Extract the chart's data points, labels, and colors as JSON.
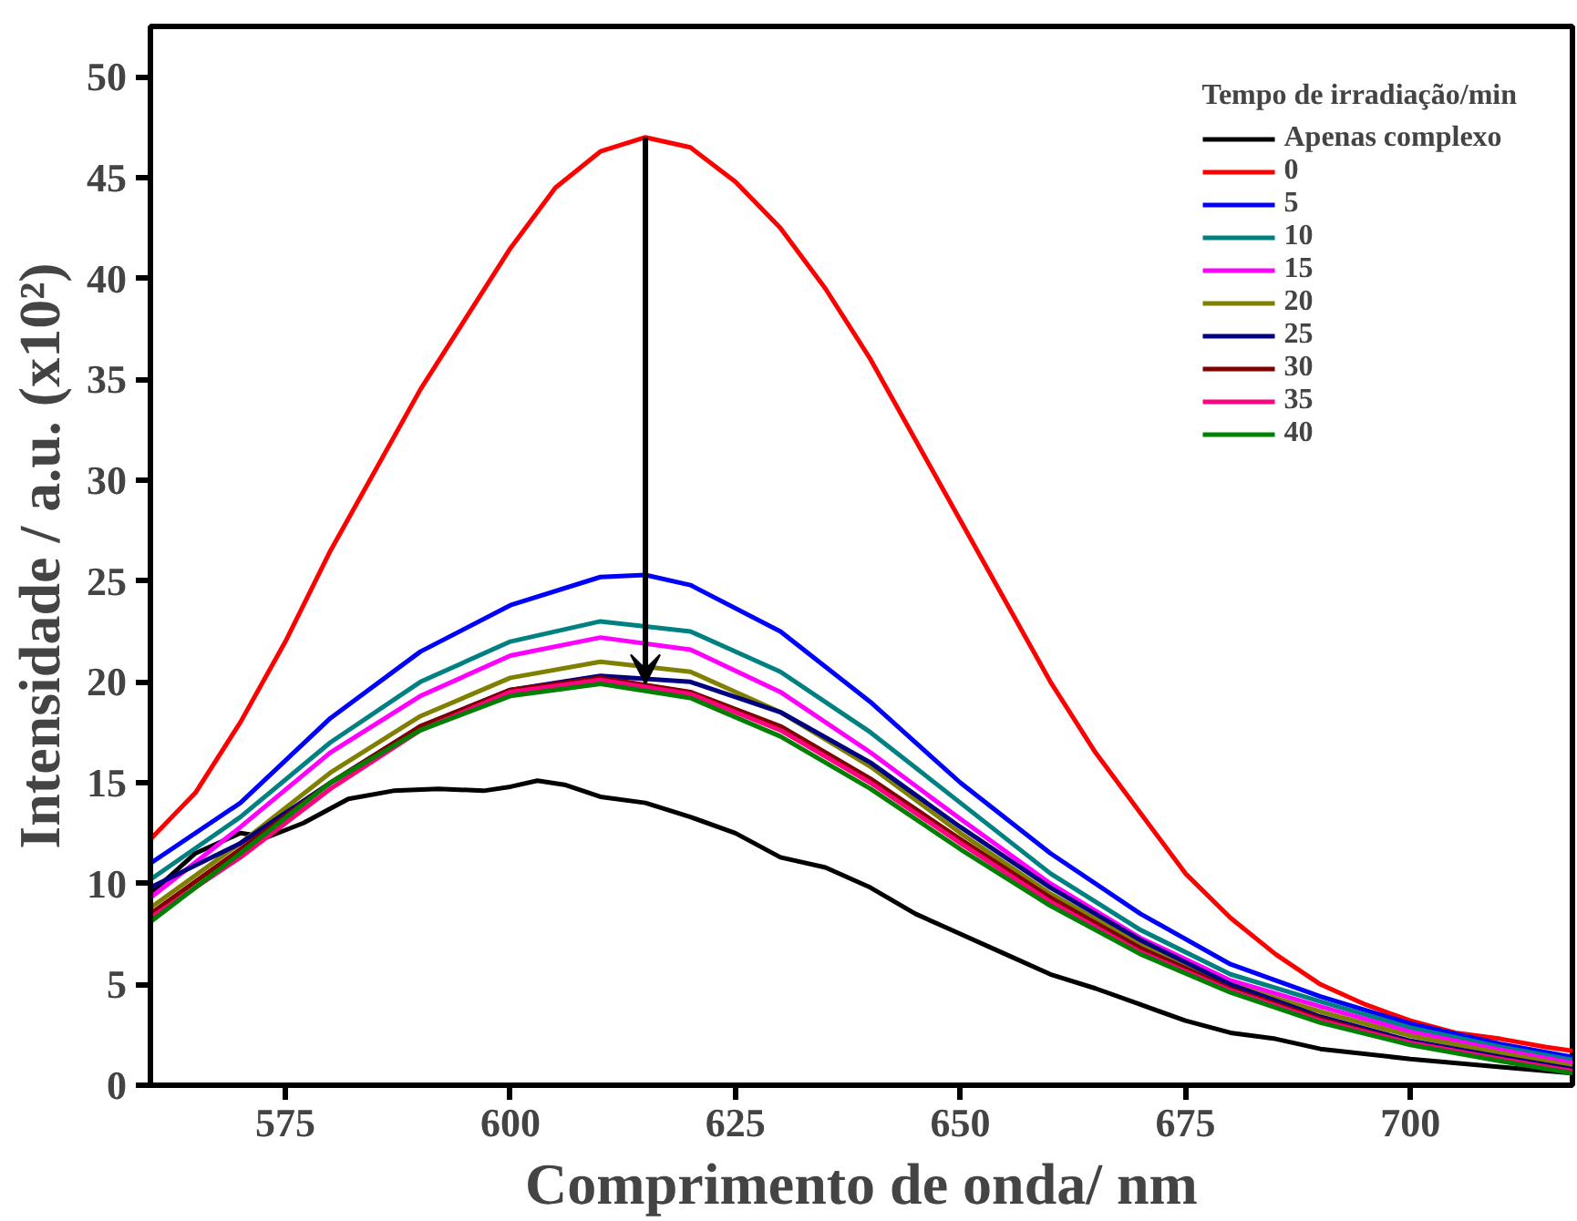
{
  "chart_data": {
    "type": "line",
    "xlabel": "Comprimento de onda/ nm",
    "ylabel": "Intensidade / a.u. (x10²)",
    "legend_title": "Tempo de irradiação/min",
    "legend": "top right",
    "grid": false,
    "marker": "none",
    "line_style": "solid",
    "xlim": [
      560,
      718
    ],
    "xticks": [
      575,
      600,
      625,
      650,
      675,
      700
    ],
    "ylim": [
      0,
      52.5
    ],
    "yticks": [
      0,
      5,
      10,
      15,
      20,
      25,
      30,
      35,
      40,
      45,
      50
    ],
    "series": [
      {
        "name": "Apenas complexo",
        "color": "#000000",
        "x": [
          560,
          565,
          570,
          573,
          577,
          582,
          587,
          592,
          597,
          600,
          603,
          606,
          610,
          615,
          620,
          625,
          630,
          635,
          640,
          645,
          650,
          655,
          660,
          665,
          670,
          675,
          680,
          685,
          690,
          700,
          710,
          718
        ],
        "values": [
          9.5,
          11.5,
          12.5,
          12.3,
          13,
          14.2,
          14.6,
          14.7,
          14.6,
          14.8,
          15.1,
          14.9,
          14.3,
          14,
          13.3,
          12.5,
          11.3,
          10.8,
          9.8,
          8.5,
          7.5,
          6.5,
          5.5,
          4.8,
          4,
          3.2,
          2.6,
          2.3,
          1.8,
          1.3,
          0.9,
          0.6
        ]
      },
      {
        "name": "0",
        "color": "#ff0000",
        "x": [
          560,
          565,
          570,
          575,
          580,
          585,
          590,
          595,
          600,
          605,
          610,
          615,
          620,
          625,
          630,
          635,
          640,
          645,
          650,
          655,
          660,
          665,
          670,
          675,
          680,
          685,
          690,
          695,
          700,
          705,
          710,
          715,
          718
        ],
        "values": [
          12.2,
          14.5,
          18,
          22,
          26.5,
          30.5,
          34.5,
          38,
          41.5,
          44.5,
          46.3,
          47,
          46.5,
          44.8,
          42.5,
          39.5,
          36,
          32,
          28,
          24,
          20,
          16.5,
          13.5,
          10.5,
          8.3,
          6.5,
          5,
          4,
          3.2,
          2.6,
          2.3,
          1.9,
          1.7
        ]
      },
      {
        "name": "5",
        "color": "#0000ff",
        "x": [
          560,
          570,
          580,
          590,
          600,
          610,
          615,
          620,
          630,
          640,
          650,
          660,
          670,
          680,
          690,
          700,
          710,
          718
        ],
        "values": [
          11,
          14,
          18.2,
          21.5,
          23.8,
          25.2,
          25.3,
          24.8,
          22.5,
          19,
          15,
          11.5,
          8.5,
          6,
          4.4,
          3.05,
          2.05,
          1.4
        ]
      },
      {
        "name": "10",
        "color": "#008080",
        "x": [
          560,
          570,
          580,
          590,
          600,
          610,
          620,
          630,
          640,
          650,
          660,
          670,
          680,
          690,
          700,
          710,
          718
        ],
        "values": [
          10.2,
          13.3,
          17,
          20,
          22,
          23,
          22.5,
          20.5,
          17.5,
          14,
          10.5,
          7.7,
          5.5,
          4.15,
          2.85,
          1.9,
          1.25
        ]
      },
      {
        "name": "15",
        "color": "#ff00ff",
        "x": [
          560,
          570,
          580,
          590,
          600,
          610,
          620,
          630,
          640,
          650,
          660,
          670,
          680,
          690,
          700,
          710,
          718
        ],
        "values": [
          9.3,
          12.8,
          16.5,
          19.3,
          21.3,
          22.2,
          21.6,
          19.5,
          16.5,
          13.2,
          10,
          7.3,
          5.2,
          3.9,
          2.65,
          1.75,
          1.1
        ]
      },
      {
        "name": "20",
        "color": "#808000",
        "x": [
          560,
          570,
          580,
          590,
          600,
          610,
          620,
          630,
          640,
          650,
          660,
          670,
          680,
          690,
          700,
          710,
          718
        ],
        "values": [
          8.8,
          12,
          15.5,
          18.3,
          20.2,
          21,
          20.5,
          18.5,
          15.8,
          12.5,
          9.5,
          7,
          5,
          3.65,
          2.45,
          1.6,
          0.95
        ]
      },
      {
        "name": "25",
        "color": "#000080",
        "x": [
          560,
          570,
          580,
          590,
          600,
          610,
          620,
          630,
          640,
          650,
          660,
          670,
          680,
          690,
          700,
          710,
          718
        ],
        "values": [
          9.8,
          12,
          15,
          17.8,
          19.6,
          20.3,
          20,
          18.5,
          16,
          12.8,
          9.8,
          7.2,
          5,
          3.4,
          2.2,
          1.4,
          0.8
        ]
      },
      {
        "name": "30",
        "color": "#800000",
        "x": [
          560,
          570,
          580,
          590,
          600,
          610,
          620,
          630,
          640,
          650,
          660,
          670,
          680,
          690,
          700,
          710,
          718
        ],
        "values": [
          8.5,
          11.7,
          15,
          17.8,
          19.6,
          20.2,
          19.5,
          17.8,
          15.2,
          12.2,
          9.3,
          6.8,
          4.8,
          3.3,
          2.1,
          1.3,
          0.7
        ]
      },
      {
        "name": "35",
        "color": "#ff0080",
        "x": [
          560,
          570,
          580,
          590,
          600,
          610,
          620,
          630,
          640,
          650,
          660,
          670,
          680,
          690,
          700,
          710,
          718
        ],
        "values": [
          8.3,
          11.3,
          14.7,
          17.6,
          19.5,
          20.1,
          19.4,
          17.6,
          15,
          12,
          9.1,
          6.6,
          4.7,
          3.2,
          2.1,
          1.3,
          0.7
        ]
      },
      {
        "name": "40",
        "color": "#008000",
        "x": [
          560,
          570,
          580,
          590,
          600,
          610,
          620,
          630,
          640,
          650,
          660,
          670,
          680,
          690,
          700,
          710,
          718
        ],
        "values": [
          8.1,
          11.5,
          15,
          17.6,
          19.3,
          19.9,
          19.2,
          17.3,
          14.7,
          11.7,
          8.9,
          6.5,
          4.6,
          3.1,
          2,
          1.2,
          0.6
        ]
      }
    ]
  }
}
